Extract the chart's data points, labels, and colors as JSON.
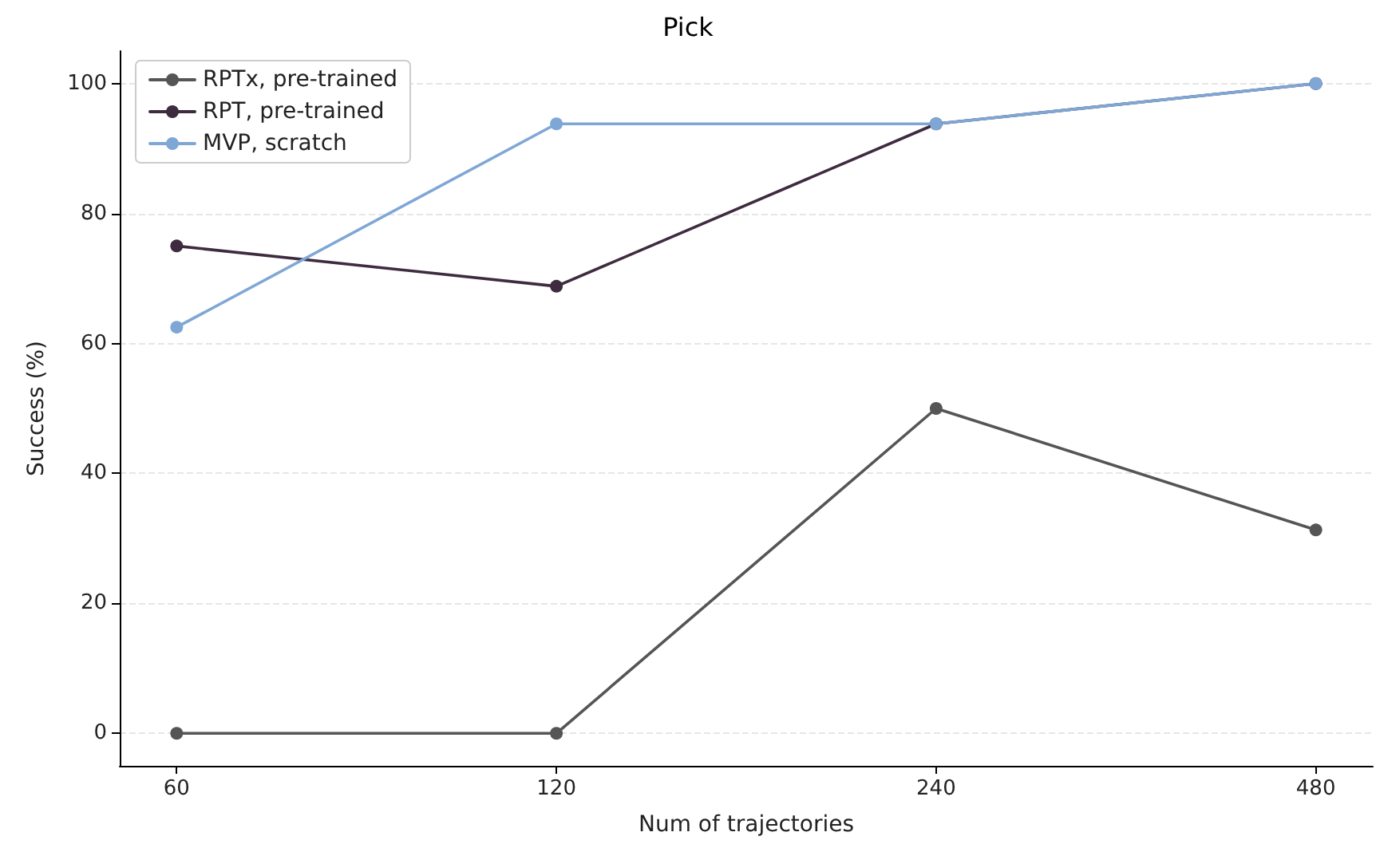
{
  "chart_data": {
    "type": "line",
    "title": "Pick",
    "xlabel": "Num of trajectories",
    "ylabel": "Success (%)",
    "categories": [
      "60",
      "120",
      "240",
      "480"
    ],
    "series": [
      {
        "name": "RPTx, pre-trained",
        "color": "#555555",
        "values": [
          0,
          0,
          50,
          31.3
        ]
      },
      {
        "name": "RPT, pre-trained",
        "color": "#3f2b3f",
        "values": [
          75,
          68.8,
          93.8,
          100
        ]
      },
      {
        "name": "MVP, scratch",
        "color": "#7fa7d6",
        "values": [
          62.5,
          93.8,
          93.8,
          100
        ]
      }
    ],
    "ylim": [
      -5,
      105
    ],
    "yticks": [
      0,
      20,
      40,
      60,
      80,
      100
    ],
    "grid": "y",
    "legend": "top left",
    "marker": "circle",
    "line_style": "solid"
  }
}
